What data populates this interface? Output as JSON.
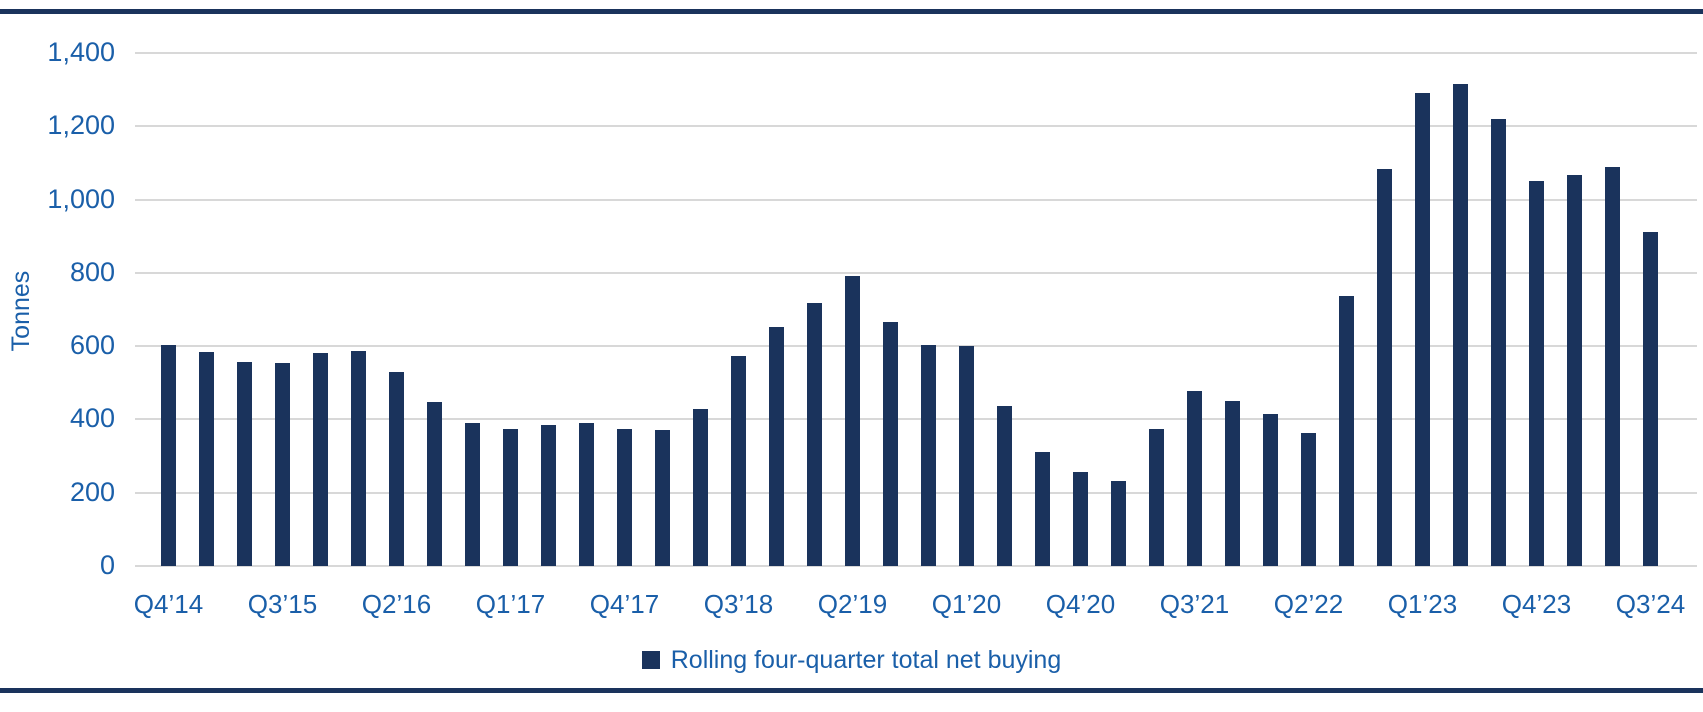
{
  "colors": {
    "bar": "#1A335C",
    "border": "#1A335C",
    "axis_text": "#1A5FA9",
    "gridline": "#D8D8D8",
    "background": "#FFFFFF"
  },
  "y_axis": {
    "title": "Tonnes",
    "ticks": [
      "0",
      "200",
      "400",
      "600",
      "800",
      "1,000",
      "1,200",
      "1,400"
    ]
  },
  "legend": {
    "label": "Rolling four-quarter total net buying"
  },
  "chart_data": {
    "type": "bar",
    "title": "",
    "xlabel": "",
    "ylabel": "Tonnes",
    "ylim": [
      0,
      1400
    ],
    "grid": true,
    "legend_position": "bottom",
    "categories": [
      "Q4’14",
      "Q1’15",
      "Q2’15",
      "Q3’15",
      "Q4’15",
      "Q1’16",
      "Q2’16",
      "Q3’16",
      "Q4’16",
      "Q1’17",
      "Q2’17",
      "Q3’17",
      "Q4’17",
      "Q1’18",
      "Q2’18",
      "Q3’18",
      "Q4’18",
      "Q1’19",
      "Q2’19",
      "Q3’19",
      "Q4’19",
      "Q1’20",
      "Q2’20",
      "Q3’20",
      "Q4’20",
      "Q1’21",
      "Q2’21",
      "Q3’21",
      "Q4’21",
      "Q1’22",
      "Q2’22",
      "Q3’22",
      "Q4’22",
      "Q1’23",
      "Q2’23",
      "Q3’23",
      "Q4’23",
      "Q1’24",
      "Q2’24",
      "Q3’24"
    ],
    "x_tick_step": 3,
    "x_tick_labels_shown": [
      "Q4’14",
      "Q3’15",
      "Q2’16",
      "Q1’17",
      "Q4’17",
      "Q3’18",
      "Q2’19",
      "Q1’20",
      "Q4’20",
      "Q3’21",
      "Q2’22",
      "Q1’23",
      "Q4’23",
      "Q3’24"
    ],
    "series": [
      {
        "name": "Rolling four-quarter total net buying",
        "values": [
          603,
          584,
          556,
          554,
          581,
          587,
          529,
          448,
          391,
          375,
          386,
          391,
          375,
          370,
          428,
          573,
          653,
          719,
          791,
          667,
          604,
          600,
          437,
          310,
          256,
          231,
          375,
          477,
          450,
          415,
          364,
          737,
          1083,
          1292,
          1315,
          1221,
          1050,
          1066,
          1088,
          911
        ]
      }
    ]
  }
}
